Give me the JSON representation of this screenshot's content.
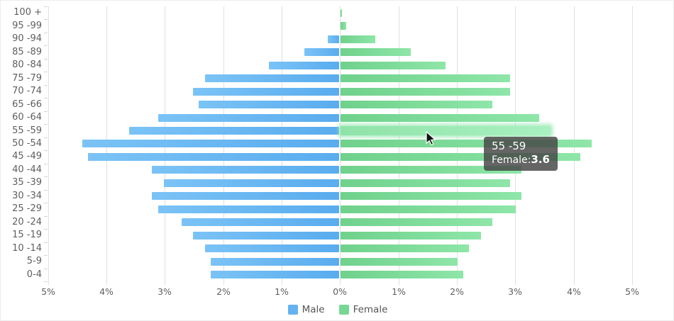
{
  "chart_data": {
    "type": "bar",
    "subtype": "population-pyramid",
    "title": "",
    "categories": [
      "100 +",
      "95 -99",
      "90 -94",
      "85 -89",
      "80 -84",
      "75 -79",
      "70 -74",
      "65 -66",
      "60 -64",
      "55 -59",
      "50 -54",
      "45 -49",
      "40 -44",
      "35 -39",
      "30 -34",
      "25 -29",
      "20 -24",
      "15 -19",
      "10 -14",
      "5-9",
      "0-4"
    ],
    "series": [
      {
        "name": "Male",
        "side": "left",
        "color_inner": "#59acee",
        "color_outer": "#7bc3f6",
        "legend_color": "#64b2f0",
        "values": [
          0,
          0,
          0.2,
          0.6,
          1.2,
          2.3,
          2.5,
          2.4,
          3.1,
          3.6,
          4.4,
          4.3,
          3.2,
          3.0,
          3.2,
          3.1,
          2.7,
          2.5,
          2.3,
          2.2,
          2.2
        ]
      },
      {
        "name": "Female",
        "side": "right",
        "color_inner": "#6fd18c",
        "color_outer": "#8ee6a8",
        "legend_color": "#79d796",
        "values": [
          0.02,
          0.1,
          0.6,
          1.2,
          1.8,
          2.9,
          2.9,
          2.6,
          3.4,
          3.6,
          4.3,
          4.1,
          3.1,
          2.9,
          3.1,
          3.0,
          2.6,
          2.4,
          2.2,
          2.0,
          2.1
        ]
      }
    ],
    "x_axis": {
      "tick_labels": [
        "5%",
        "4%",
        "3%",
        "2%",
        "1%",
        "0%",
        "1%",
        "2%",
        "3%",
        "4%",
        "5%"
      ],
      "max_percent_each_side": 5,
      "unit": "%"
    },
    "grid": true,
    "legend_position": "bottom",
    "highlight": {
      "series": "Female",
      "category": "55 -59",
      "value": 3.6,
      "color_inner": "#8fe3a8",
      "color_outer": "#aaf0c1"
    }
  },
  "tooltip": {
    "title": "55 -59",
    "series_label": "Female:",
    "value": "3.6"
  },
  "colors": {
    "gridline": "#e0e0e0",
    "axis_label": "#5e5e5e",
    "legend_text": "#555555",
    "tooltip_bg": "rgba(70,70,70,0.83)"
  }
}
